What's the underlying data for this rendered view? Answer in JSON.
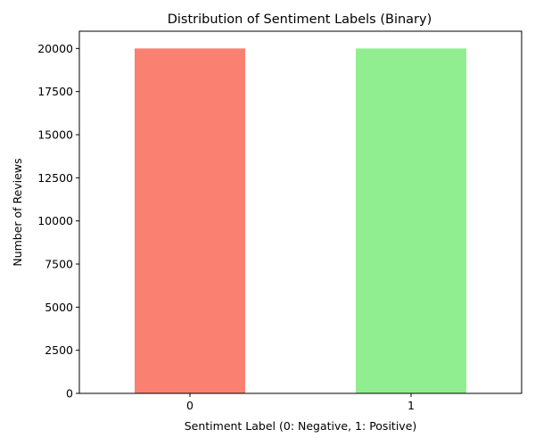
{
  "chart_data": {
    "type": "bar",
    "title": "Distribution of Sentiment Labels (Binary)",
    "xlabel": "Sentiment Label (0: Negative, 1: Positive)",
    "ylabel": "Number of Reviews",
    "categories": [
      "0",
      "1"
    ],
    "values": [
      20000,
      20000
    ],
    "colors": [
      "#fa8072",
      "#90ee90"
    ],
    "ylim": [
      0,
      21000
    ],
    "yticks": [
      0,
      2500,
      5000,
      7500,
      10000,
      12500,
      15000,
      17500,
      20000
    ],
    "ytick_labels": [
      "0",
      "2500",
      "5000",
      "7500",
      "10000",
      "12500",
      "15000",
      "17500",
      "20000"
    ],
    "grid": false,
    "legend": "none"
  }
}
